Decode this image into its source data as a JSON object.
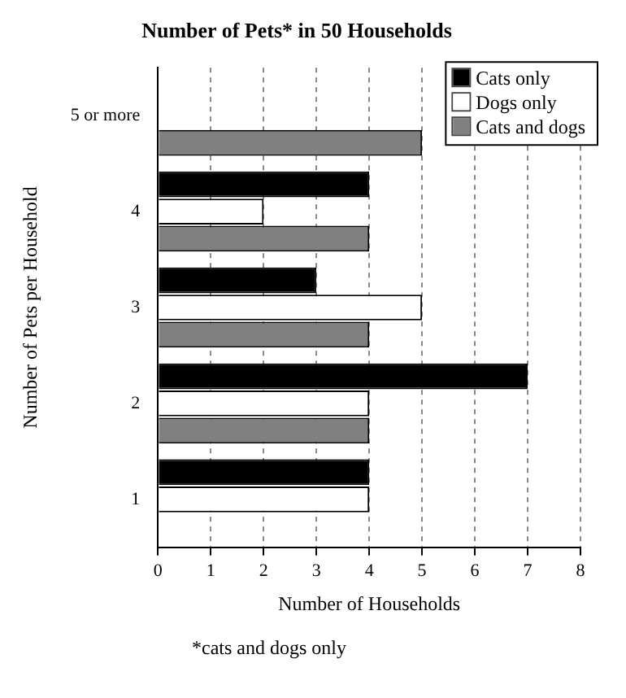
{
  "chart_data": {
    "type": "bar",
    "orientation": "horizontal",
    "title": "Number of Pets* in 50 Households",
    "xlabel": "Number of Households",
    "ylabel": "Number of Pets per Household",
    "categories": [
      "5 or more",
      "4",
      "3",
      "2",
      "1"
    ],
    "series": [
      {
        "name": "Cats only",
        "color": "#000000",
        "values": [
          0,
          4,
          3,
          7,
          4
        ]
      },
      {
        "name": "Dogs only",
        "color": "#ffffff",
        "values": [
          0,
          2,
          5,
          4,
          4
        ]
      },
      {
        "name": "Cats and dogs",
        "color": "#808080",
        "values": [
          5,
          4,
          4,
          4,
          0
        ]
      }
    ],
    "xlim": [
      0,
      8
    ],
    "xticks": [
      0,
      1,
      2,
      3,
      4,
      5,
      6,
      7,
      8
    ],
    "grid": "x",
    "legend": "top right",
    "annotations": [
      "*cats and dogs only"
    ]
  }
}
